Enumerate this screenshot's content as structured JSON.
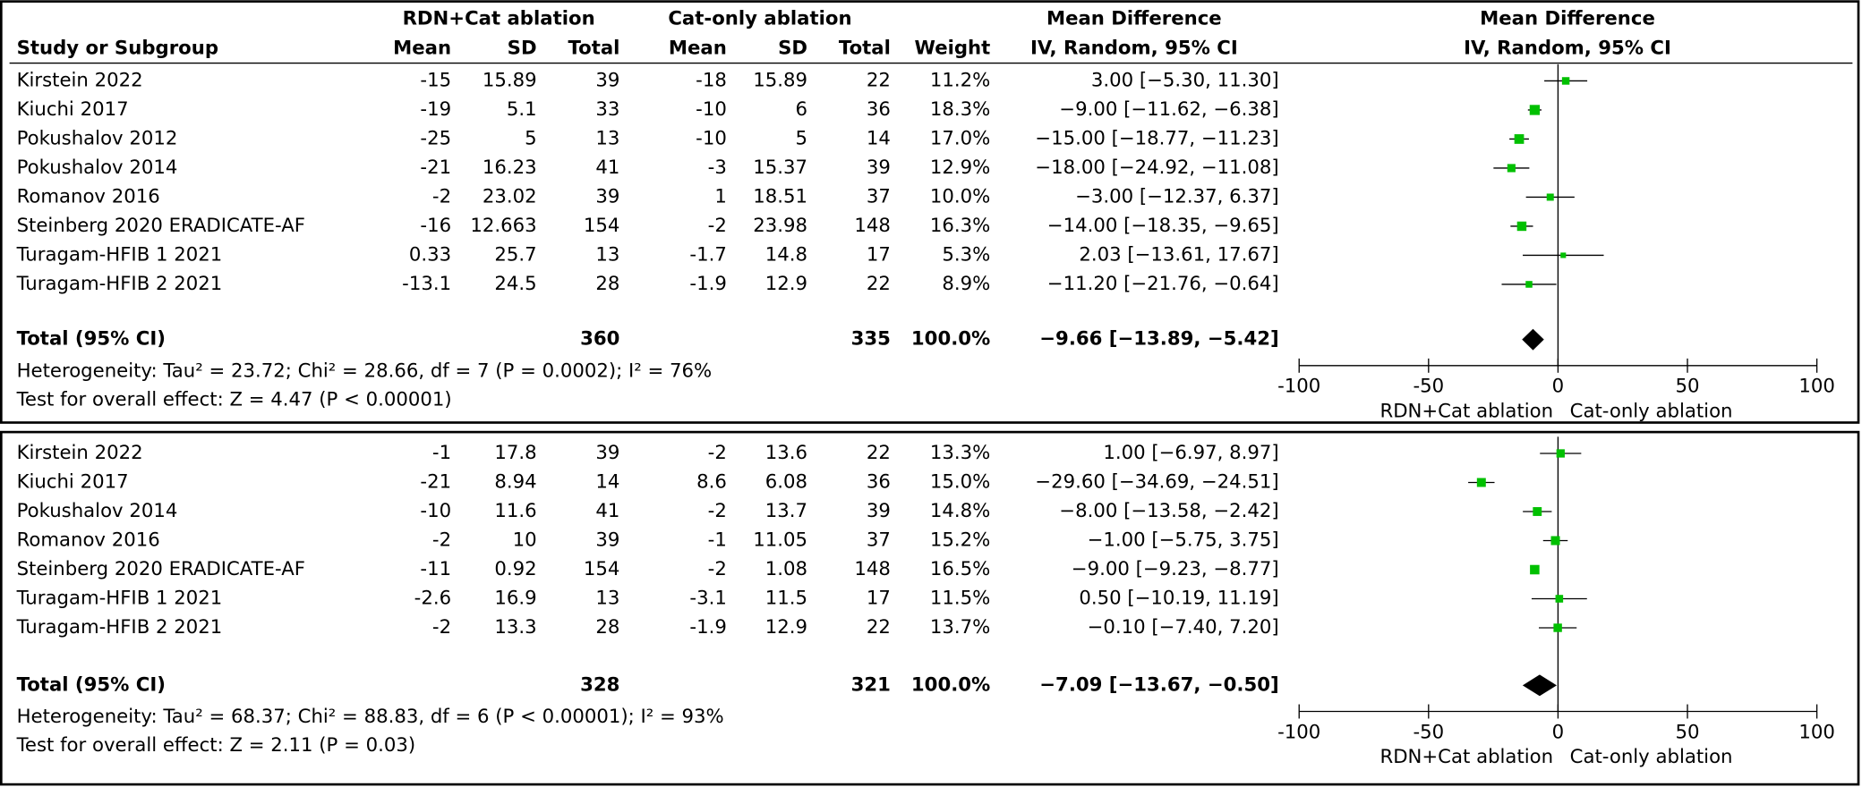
{
  "chart_data": [
    {
      "type": "forest",
      "header": {
        "group_e": "RDN+Cat ablation",
        "group_c": "Cat-only ablation",
        "md_title": "Mean Difference",
        "md_method": "IV, Random, 95% CI",
        "plot_title": "Mean Difference",
        "plot_method": "IV, Random, 95% CI",
        "columns": [
          "Study or Subgroup",
          "Mean",
          "SD",
          "Total",
          "Mean",
          "SD",
          "Total",
          "Weight"
        ]
      },
      "rows": [
        {
          "study": "Kirstein 2022",
          "e_mean": -15,
          "e_sd": 15.89,
          "e_total": 39,
          "c_mean": -18,
          "c_sd": 15.89,
          "c_total": 22,
          "weight": 11.2,
          "weight_label": "11.2%",
          "md": 3.0,
          "ci": [
            -5.3,
            11.3
          ],
          "md_label": "3.00 [−5.30, 11.30]"
        },
        {
          "study": "Kiuchi 2017",
          "e_mean": -19,
          "e_sd": 5.1,
          "e_total": 33,
          "c_mean": -10,
          "c_sd": 6,
          "c_total": 36,
          "weight": 18.3,
          "weight_label": "18.3%",
          "md": -9.0,
          "ci": [
            -11.62,
            -6.38
          ],
          "md_label": "−9.00 [−11.62, −6.38]"
        },
        {
          "study": "Pokushalov 2012",
          "e_mean": -25,
          "e_sd": 5,
          "e_total": 13,
          "c_mean": -10,
          "c_sd": 5,
          "c_total": 14,
          "weight": 17.0,
          "weight_label": "17.0%",
          "md": -15.0,
          "ci": [
            -18.77,
            -11.23
          ],
          "md_label": "−15.00 [−18.77, −11.23]"
        },
        {
          "study": "Pokushalov 2014",
          "e_mean": -21,
          "e_sd": 16.23,
          "e_total": 41,
          "c_mean": -3,
          "c_sd": 15.37,
          "c_total": 39,
          "weight": 12.9,
          "weight_label": "12.9%",
          "md": -18.0,
          "ci": [
            -24.92,
            -11.08
          ],
          "md_label": "−18.00 [−24.92, −11.08]"
        },
        {
          "study": "Romanov 2016",
          "e_mean": -2,
          "e_sd": 23.02,
          "e_total": 39,
          "c_mean": 1,
          "c_sd": 18.51,
          "c_total": 37,
          "weight": 10.0,
          "weight_label": "10.0%",
          "md": -3.0,
          "ci": [
            -12.37,
            6.37
          ],
          "md_label": "−3.00 [−12.37, 6.37]"
        },
        {
          "study": "Steinberg 2020 ERADICATE-AF",
          "e_mean": -16,
          "e_sd": 12.663,
          "e_total": 154,
          "c_mean": -2,
          "c_sd": 23.98,
          "c_total": 148,
          "weight": 16.3,
          "weight_label": "16.3%",
          "md": -14.0,
          "ci": [
            -18.35,
            -9.65
          ],
          "md_label": "−14.00 [−18.35, −9.65]"
        },
        {
          "study": "Turagam-HFIB 1 2021",
          "e_mean": 0.33,
          "e_sd": 25.7,
          "e_total": 13,
          "c_mean": -1.7,
          "c_sd": 14.8,
          "c_total": 17,
          "weight": 5.3,
          "weight_label": "5.3%",
          "md": 2.03,
          "ci": [
            -13.61,
            17.67
          ],
          "md_label": "2.03 [−13.61, 17.67]"
        },
        {
          "study": "Turagam-HFIB 2 2021",
          "e_mean": -13.1,
          "e_sd": 24.5,
          "e_total": 28,
          "c_mean": -1.9,
          "c_sd": 12.9,
          "c_total": 22,
          "weight": 8.9,
          "weight_label": "8.9%",
          "md": -11.2,
          "ci": [
            -21.76,
            -0.64
          ],
          "md_label": "−11.20 [−21.76, −0.64]"
        }
      ],
      "total": {
        "label": "Total (95% CI)",
        "e_total": 360,
        "c_total": 335,
        "weight_label": "100.0%",
        "md": -9.66,
        "ci": [
          -13.89,
          -5.42
        ],
        "md_label": "−9.66 [−13.89, −5.42]"
      },
      "heterogeneity": "Heterogeneity: Tau² = 23.72; Chi² = 28.66, df = 7 (P = 0.0002); I² = 76%",
      "overall_test": "Test for overall effect: Z = 4.47 (P < 0.00001)",
      "xlim": [
        -100,
        100
      ],
      "xticks": [
        -100,
        -50,
        0,
        50,
        100
      ],
      "x_labels": [
        "RDN+Cat ablation",
        "Cat-only ablation"
      ],
      "color": "#00c000"
    },
    {
      "type": "forest",
      "rows": [
        {
          "study": "Kirstein 2022",
          "e_mean": -1,
          "e_sd": 17.8,
          "e_total": 39,
          "c_mean": -2,
          "c_sd": 13.6,
          "c_total": 22,
          "weight": 13.3,
          "weight_label": "13.3%",
          "md": 1.0,
          "ci": [
            -6.97,
            8.97
          ],
          "md_label": "1.00 [−6.97, 8.97]"
        },
        {
          "study": "Kiuchi 2017",
          "e_mean": -21,
          "e_sd": 8.94,
          "e_total": 14,
          "c_mean": 8.6,
          "c_sd": 6.08,
          "c_total": 36,
          "weight": 15.0,
          "weight_label": "15.0%",
          "md": -29.6,
          "ci": [
            -34.69,
            -24.51
          ],
          "md_label": "−29.60 [−34.69, −24.51]"
        },
        {
          "study": "Pokushalov 2014",
          "e_mean": -10,
          "e_sd": 11.6,
          "e_total": 41,
          "c_mean": -2,
          "c_sd": 13.7,
          "c_total": 39,
          "weight": 14.8,
          "weight_label": "14.8%",
          "md": -8.0,
          "ci": [
            -13.58,
            -2.42
          ],
          "md_label": "−8.00 [−13.58, −2.42]"
        },
        {
          "study": "Romanov 2016",
          "e_mean": -2,
          "e_sd": 10,
          "e_total": 39,
          "c_mean": -1,
          "c_sd": 11.05,
          "c_total": 37,
          "weight": 15.2,
          "weight_label": "15.2%",
          "md": -1.0,
          "ci": [
            -5.75,
            3.75
          ],
          "md_label": "−1.00 [−5.75, 3.75]"
        },
        {
          "study": "Steinberg 2020 ERADICATE-AF",
          "e_mean": -11,
          "e_sd": 0.92,
          "e_total": 154,
          "c_mean": -2,
          "c_sd": 1.08,
          "c_total": 148,
          "weight": 16.5,
          "weight_label": "16.5%",
          "md": -9.0,
          "ci": [
            -9.23,
            -8.77
          ],
          "md_label": "−9.00 [−9.23, −8.77]"
        },
        {
          "study": "Turagam-HFIB 1 2021",
          "e_mean": -2.6,
          "e_sd": 16.9,
          "e_total": 13,
          "c_mean": -3.1,
          "c_sd": 11.5,
          "c_total": 17,
          "weight": 11.5,
          "weight_label": "11.5%",
          "md": 0.5,
          "ci": [
            -10.19,
            11.19
          ],
          "md_label": "0.50 [−10.19, 11.19]"
        },
        {
          "study": "Turagam-HFIB 2 2021",
          "e_mean": -2,
          "e_sd": 13.3,
          "e_total": 28,
          "c_mean": -1.9,
          "c_sd": 12.9,
          "c_total": 22,
          "weight": 13.7,
          "weight_label": "13.7%",
          "md": -0.1,
          "ci": [
            -7.4,
            7.2
          ],
          "md_label": "−0.10 [−7.40, 7.20]"
        }
      ],
      "total": {
        "label": "Total (95% CI)",
        "e_total": 328,
        "c_total": 321,
        "weight_label": "100.0%",
        "md": -7.09,
        "ci": [
          -13.67,
          -0.5
        ],
        "md_label": "−7.09 [−13.67, −0.50]"
      },
      "heterogeneity": "Heterogeneity: Tau² = 68.37; Chi² = 88.83, df = 6 (P < 0.00001); I² = 93%",
      "overall_test": "Test for overall effect: Z = 2.11 (P = 0.03)",
      "xlim": [
        -100,
        100
      ],
      "xticks": [
        -100,
        -50,
        0,
        50,
        100
      ],
      "x_labels": [
        "RDN+Cat ablation",
        "Cat-only ablation"
      ],
      "color": "#00c000"
    }
  ]
}
